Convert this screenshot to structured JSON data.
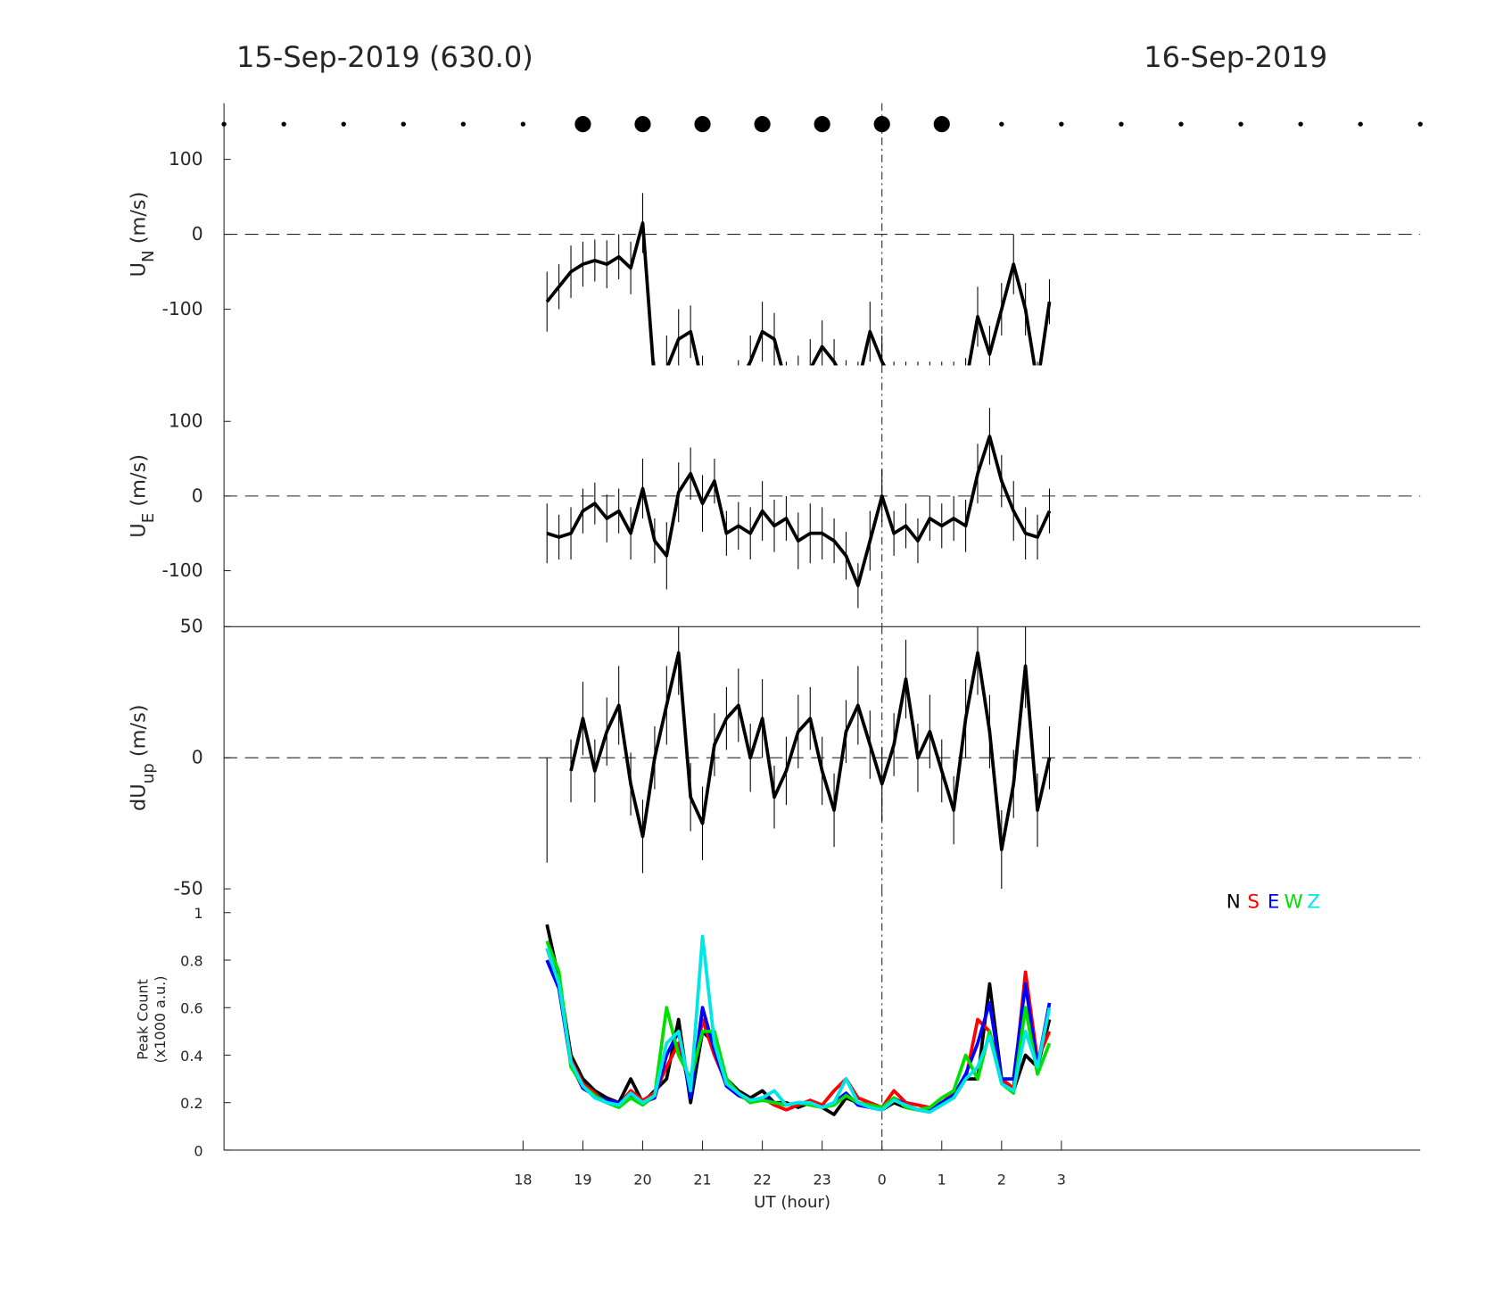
{
  "header": {
    "left": "15-Sep-2019 (630.0)",
    "right": "16-Sep-2019"
  },
  "chart_data": [
    {
      "type": "line",
      "ylabel_parts": [
        "U",
        "N",
        " (m/s)"
      ],
      "xlim": [
        13,
        33
      ],
      "ylim": [
        -175,
        175
      ],
      "yticks": [
        -100,
        0,
        100
      ],
      "zero_line": true,
      "vline": 24,
      "markers": {
        "small_x": [
          13,
          14,
          15,
          16,
          17,
          18,
          26,
          27,
          28,
          29,
          30,
          31,
          32,
          33
        ],
        "large_x": [
          19,
          20,
          21,
          22,
          23,
          24,
          25
        ]
      },
      "x": [
        18.4,
        18.6,
        18.8,
        19.0,
        19.2,
        19.4,
        19.6,
        19.8,
        20.0,
        20.2,
        20.4,
        20.6,
        20.8,
        21.0,
        21.2,
        21.4,
        21.6,
        21.8,
        22.0,
        22.2,
        22.4,
        22.6,
        22.8,
        23.0,
        23.2,
        23.4,
        23.6,
        23.8,
        24.0,
        24.2,
        24.4,
        24.6,
        24.8,
        25.0,
        25.2,
        25.4,
        25.6,
        25.8,
        26.0,
        26.2,
        26.4,
        26.6,
        26.8
      ],
      "series": [
        {
          "color": "#000000",
          "values": [
            -90,
            -70,
            -50,
            -40,
            -35,
            -40,
            -30,
            -45,
            15,
            -200,
            -180,
            -140,
            -130,
            -200,
            -220,
            -220,
            -200,
            -170,
            -130,
            -140,
            -200,
            -200,
            -180,
            -150,
            -170,
            -200,
            -200,
            -130,
            -170,
            -200,
            -200,
            -200,
            -200,
            -200,
            -200,
            -200,
            -110,
            -160,
            -100,
            -40,
            -100,
            -200,
            -90
          ],
          "errors": [
            40,
            30,
            35,
            30,
            28,
            32,
            30,
            35,
            40,
            30,
            45,
            40,
            35,
            38,
            30,
            30,
            32,
            35,
            40,
            35,
            30,
            38,
            40,
            35,
            30,
            32,
            30,
            40,
            35,
            30,
            30,
            30,
            30,
            30,
            30,
            35,
            40,
            38,
            35,
            40,
            35,
            30,
            30
          ]
        }
      ]
    },
    {
      "type": "line",
      "ylabel_parts": [
        "U",
        "E",
        " (m/s)"
      ],
      "xlim": [
        13,
        33
      ],
      "ylim": [
        -175,
        175
      ],
      "yticks": [
        -100,
        0,
        100
      ],
      "zero_line": true,
      "vline": 24,
      "x": [
        18.4,
        18.6,
        18.8,
        19.0,
        19.2,
        19.4,
        19.6,
        19.8,
        20.0,
        20.2,
        20.4,
        20.6,
        20.8,
        21.0,
        21.2,
        21.4,
        21.6,
        21.8,
        22.0,
        22.2,
        22.4,
        22.6,
        22.8,
        23.0,
        23.2,
        23.4,
        23.6,
        23.8,
        24.0,
        24.2,
        24.4,
        24.6,
        24.8,
        25.0,
        25.2,
        25.4,
        25.6,
        25.8,
        26.0,
        26.2,
        26.4,
        26.6,
        26.8
      ],
      "series": [
        {
          "color": "#000000",
          "values": [
            -50,
            -55,
            -50,
            -20,
            -10,
            -30,
            -20,
            -50,
            10,
            -60,
            -80,
            5,
            30,
            -10,
            20,
            -50,
            -40,
            -50,
            -20,
            -40,
            -30,
            -60,
            -50,
            -50,
            -60,
            -80,
            -120,
            -60,
            0,
            -50,
            -40,
            -60,
            -30,
            -40,
            -30,
            -40,
            30,
            80,
            20,
            -20,
            -50,
            -55,
            -20
          ],
          "errors": [
            40,
            30,
            35,
            30,
            28,
            32,
            30,
            35,
            40,
            30,
            45,
            40,
            35,
            38,
            30,
            30,
            32,
            35,
            40,
            35,
            30,
            38,
            40,
            35,
            30,
            32,
            30,
            40,
            35,
            30,
            30,
            30,
            30,
            30,
            30,
            35,
            40,
            38,
            35,
            40,
            35,
            30,
            30
          ]
        }
      ]
    },
    {
      "type": "line",
      "ylabel_parts": [
        "dU",
        "up",
        " (m/s)"
      ],
      "xlim": [
        13,
        33
      ],
      "ylim": [
        -50,
        50
      ],
      "yticks": [
        -50,
        0,
        50
      ],
      "zero_line": true,
      "vline": 24,
      "top_border": true,
      "x": [
        18.4,
        18.6,
        18.8,
        19.0,
        19.2,
        19.4,
        19.6,
        19.8,
        20.0,
        20.2,
        20.4,
        20.6,
        20.8,
        21.0,
        21.2,
        21.4,
        21.6,
        21.8,
        22.0,
        22.2,
        22.4,
        22.6,
        22.8,
        23.0,
        23.2,
        23.4,
        23.6,
        23.8,
        24.0,
        24.2,
        24.4,
        24.6,
        24.8,
        25.0,
        25.2,
        25.4,
        25.6,
        25.8,
        26.0,
        26.2,
        26.4,
        26.6,
        26.8
      ],
      "series": [
        {
          "color": "#000000",
          "values": [
            -20,
            null,
            -5,
            15,
            -5,
            10,
            20,
            -10,
            -30,
            0,
            20,
            40,
            -15,
            -25,
            5,
            15,
            20,
            0,
            15,
            -15,
            -5,
            10,
            15,
            -5,
            -20,
            10,
            20,
            5,
            -10,
            5,
            30,
            0,
            10,
            -5,
            -20,
            15,
            40,
            10,
            -35,
            -10,
            35,
            -20,
            0
          ],
          "errors": [
            20,
            null,
            12,
            14,
            12,
            13,
            15,
            12,
            14,
            12,
            15,
            16,
            13,
            14,
            12,
            12,
            14,
            13,
            15,
            12,
            13,
            14,
            12,
            13,
            14,
            12,
            15,
            13,
            14,
            12,
            15,
            13,
            14,
            12,
            13,
            15,
            16,
            14,
            15,
            13,
            16,
            14,
            12
          ]
        }
      ]
    },
    {
      "type": "line",
      "ylabel_lines": [
        "Peak Count",
        "(x1000 a.u.)"
      ],
      "xlabel": "UT (hour)",
      "xlim": [
        13,
        33
      ],
      "ylim": [
        0,
        1.1
      ],
      "yticks": [
        0,
        0.2,
        0.4,
        0.6,
        0.8,
        1
      ],
      "vline": 24,
      "legend": "upper right",
      "xticks": [
        18,
        19,
        20,
        21,
        22,
        23,
        {
          "value": 24,
          "label": "0"
        },
        {
          "value": 25,
          "label": "1"
        },
        {
          "value": 26,
          "label": "2"
        },
        {
          "value": 27,
          "label": "3"
        }
      ],
      "x": [
        18.4,
        18.6,
        18.8,
        19.0,
        19.2,
        19.4,
        19.6,
        19.8,
        20.0,
        20.2,
        20.4,
        20.6,
        20.8,
        21.0,
        21.2,
        21.4,
        21.6,
        21.8,
        22.0,
        22.2,
        22.4,
        22.6,
        22.8,
        23.0,
        23.2,
        23.4,
        23.6,
        23.8,
        24.0,
        24.2,
        24.4,
        24.6,
        24.8,
        25.0,
        25.2,
        25.4,
        25.6,
        25.8,
        26.0,
        26.2,
        26.4,
        26.6,
        26.8
      ],
      "series": [
        {
          "name": "N",
          "color": "#000000",
          "values": [
            0.95,
            0.72,
            0.4,
            0.3,
            0.25,
            0.22,
            0.2,
            0.3,
            0.2,
            0.25,
            0.3,
            0.55,
            0.2,
            0.5,
            0.45,
            0.3,
            0.25,
            0.22,
            0.25,
            0.2,
            0.2,
            0.18,
            0.2,
            0.18,
            0.15,
            0.22,
            0.2,
            0.18,
            0.17,
            0.2,
            0.18,
            0.17,
            0.16,
            0.2,
            0.22,
            0.3,
            0.3,
            0.7,
            0.3,
            0.25,
            0.4,
            0.35,
            0.55
          ]
        },
        {
          "name": "S",
          "color": "#ff0000",
          "values": [
            0.85,
            0.7,
            0.38,
            0.28,
            0.24,
            0.2,
            0.19,
            0.25,
            0.21,
            0.24,
            0.35,
            0.45,
            0.25,
            0.55,
            0.4,
            0.28,
            0.24,
            0.2,
            0.22,
            0.19,
            0.17,
            0.19,
            0.21,
            0.19,
            0.25,
            0.3,
            0.22,
            0.2,
            0.18,
            0.25,
            0.2,
            0.19,
            0.18,
            0.2,
            0.24,
            0.3,
            0.55,
            0.5,
            0.3,
            0.26,
            0.75,
            0.38,
            0.5
          ]
        },
        {
          "name": "E",
          "color": "#0000ff",
          "values": [
            0.8,
            0.68,
            0.36,
            0.26,
            0.23,
            0.21,
            0.2,
            0.23,
            0.2,
            0.22,
            0.4,
            0.5,
            0.22,
            0.6,
            0.42,
            0.27,
            0.23,
            0.21,
            0.22,
            0.2,
            0.19,
            0.2,
            0.2,
            0.18,
            0.2,
            0.24,
            0.19,
            0.18,
            0.17,
            0.22,
            0.19,
            0.17,
            0.17,
            0.2,
            0.23,
            0.32,
            0.45,
            0.62,
            0.3,
            0.3,
            0.7,
            0.35,
            0.62
          ]
        },
        {
          "name": "W",
          "color": "#00e000",
          "values": [
            0.88,
            0.75,
            0.35,
            0.27,
            0.23,
            0.2,
            0.18,
            0.22,
            0.19,
            0.23,
            0.6,
            0.4,
            0.3,
            0.5,
            0.5,
            0.3,
            0.24,
            0.2,
            0.21,
            0.2,
            0.19,
            0.2,
            0.19,
            0.18,
            0.19,
            0.23,
            0.2,
            0.19,
            0.18,
            0.22,
            0.18,
            0.17,
            0.18,
            0.22,
            0.25,
            0.4,
            0.3,
            0.5,
            0.28,
            0.24,
            0.6,
            0.32,
            0.45
          ]
        },
        {
          "name": "Z",
          "color": "#00e5e5",
          "values": [
            0.85,
            0.7,
            0.37,
            0.27,
            0.22,
            0.2,
            0.19,
            0.24,
            0.2,
            0.23,
            0.45,
            0.5,
            0.25,
            0.9,
            0.45,
            0.28,
            0.24,
            0.21,
            0.22,
            0.25,
            0.19,
            0.2,
            0.2,
            0.18,
            0.2,
            0.3,
            0.2,
            0.18,
            0.17,
            0.21,
            0.19,
            0.17,
            0.16,
            0.19,
            0.22,
            0.3,
            0.35,
            0.48,
            0.28,
            0.25,
            0.5,
            0.35,
            0.6
          ]
        }
      ]
    }
  ]
}
